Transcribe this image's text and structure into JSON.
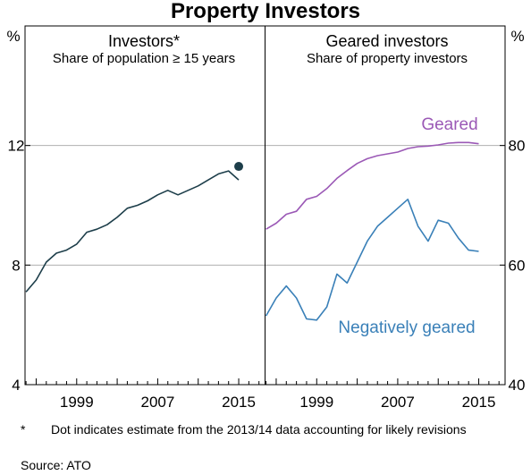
{
  "title": "Property Investors",
  "footnote": {
    "marker": "*",
    "text": "Dot indicates estimate from the 2013/14 data accounting for likely revisions"
  },
  "source": "Source:   ATO",
  "colors": {
    "dark_teal": "#1d3e4a",
    "purple": "#9b59b6",
    "blue": "#3a80b8",
    "grid": "#b0b0b0"
  },
  "chart_data": [
    {
      "type": "line",
      "title": "Investors*",
      "subtitle": "Share of population ≥ 15 years",
      "ylabel": "%",
      "ylim": [
        4,
        16
      ],
      "yticks": [
        4,
        8,
        12
      ],
      "xticks": [
        1999,
        2007,
        2015
      ],
      "xlim": [
        1993.9,
        2017.6
      ],
      "gridlines": [
        8,
        12
      ],
      "series": [
        {
          "x": [
            1994,
            1995,
            1996,
            1997,
            1998,
            1999,
            2000,
            2001,
            2002,
            2003,
            2004,
            2005,
            2006,
            2007,
            2008,
            2009,
            2010,
            2011,
            2012,
            2013,
            2014,
            2015
          ],
          "values": [
            7.1,
            7.5,
            8.1,
            8.4,
            8.5,
            8.7,
            9.1,
            9.2,
            9.35,
            9.6,
            9.9,
            10.0,
            10.15,
            10.35,
            10.5,
            10.35,
            10.5,
            10.65,
            10.85,
            11.05,
            11.15,
            10.85
          ]
        }
      ],
      "points": [
        {
          "x": 2015,
          "y": 11.3
        }
      ]
    },
    {
      "type": "line",
      "title": "Geared investors",
      "subtitle": "Share of property investors",
      "ylabel": "%",
      "ylim": [
        40,
        100
      ],
      "yticks": [
        40,
        60,
        80
      ],
      "xticks": [
        1999,
        2007,
        2015
      ],
      "xlim": [
        1993.9,
        2017.6
      ],
      "gridlines": [
        60,
        80
      ],
      "series": [
        {
          "name": "Geared",
          "x": [
            1994,
            1995,
            1996,
            1997,
            1998,
            1999,
            2000,
            2001,
            2002,
            2003,
            2004,
            2005,
            2006,
            2007,
            2008,
            2009,
            2010,
            2011,
            2012,
            2013,
            2014,
            2015
          ],
          "values": [
            66.0,
            67.0,
            68.5,
            69.0,
            71.0,
            71.5,
            72.8,
            74.5,
            75.8,
            77.0,
            77.8,
            78.3,
            78.6,
            78.9,
            79.5,
            79.8,
            79.9,
            80.1,
            80.4,
            80.5,
            80.5,
            80.3
          ]
        },
        {
          "name": "Negatively geared",
          "x": [
            1994,
            1995,
            1996,
            1997,
            1998,
            1999,
            2000,
            2001,
            2002,
            2003,
            2004,
            2005,
            2006,
            2007,
            2008,
            2009,
            2010,
            2011,
            2012,
            2013,
            2014,
            2015
          ],
          "values": [
            51.5,
            54.5,
            56.5,
            54.5,
            51.0,
            50.8,
            53.0,
            58.5,
            57.0,
            60.5,
            64.0,
            66.5,
            68.0,
            69.5,
            71.0,
            66.5,
            64.0,
            67.5,
            67.0,
            64.5,
            62.5,
            62.3
          ]
        }
      ]
    }
  ]
}
